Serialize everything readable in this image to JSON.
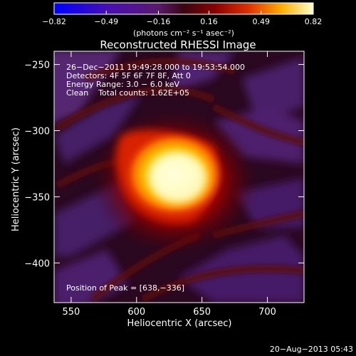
{
  "chart_data": {
    "type": "heatmap",
    "title": "Reconstructed RHESSI Image",
    "xlabel": "Heliocentric X (arcsec)",
    "ylabel": "Heliocentric Y (arcsec)",
    "xlim": [
      537,
      728
    ],
    "ylim": [
      -430,
      -240
    ],
    "x_ticks": [
      550,
      600,
      650,
      700
    ],
    "y_ticks": [
      -250,
      -300,
      -350,
      -400
    ],
    "x_tick_labels": [
      "550",
      "600",
      "650",
      "700"
    ],
    "y_tick_labels": [
      "−250",
      "−300",
      "−350",
      "−400"
    ],
    "colorbar": {
      "min": -0.82,
      "max": 0.82,
      "ticks": [
        -0.82,
        -0.49,
        -0.16,
        0.16,
        0.49,
        0.82
      ],
      "tick_labels": [
        "−0.82",
        "−0.49",
        "−0.16",
        "0.16",
        "0.49",
        "0.82"
      ],
      "units": "(photons cm⁻² s⁻¹ asec⁻²)"
    },
    "annotations": {
      "time_range": "26−Dec−2011 19:49:28.000 to 19:53:54.000",
      "detectors": "Detectors: 4F 5F 6F 7F 8F, Att 0",
      "energy": "Energy Range: 3.0 − 6.0 keV",
      "clean": "Clean    Total counts: 1.62E+05",
      "peak": "Position of Peak = [638,−336]"
    },
    "peak": {
      "x": 638,
      "y": -336
    },
    "footer_date": "20−Aug−2013 05:43"
  }
}
